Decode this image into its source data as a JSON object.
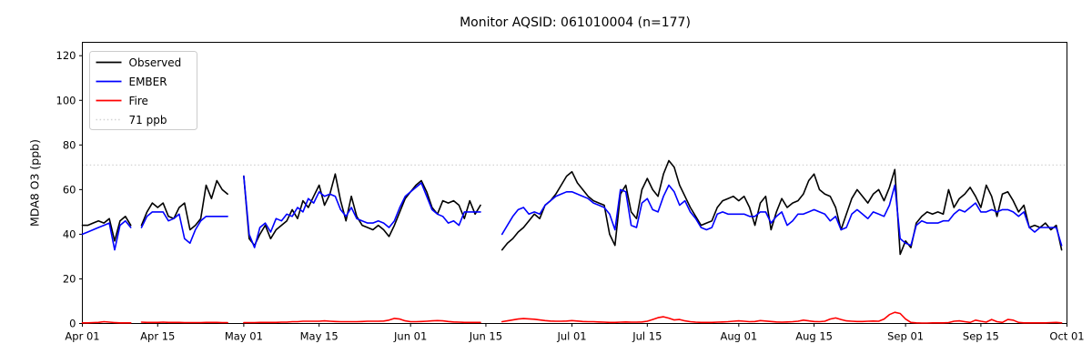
{
  "figure": {
    "title": "Monitor AQSID: 061010004 (n=177)",
    "y_axis_label": "MDA8 O3 (ppb)"
  },
  "chart_data": {
    "type": "line",
    "title": "Monitor AQSID: 061010004 (n=177)",
    "xlabel": "",
    "ylabel": "MDA8 O3 (ppb)",
    "x_unit": "days since Apr 01 (daily MDA8 values, Apr 01 - Sep 30; nulls = missing days)",
    "xlim": [
      0,
      183
    ],
    "ylim": [
      0,
      126
    ],
    "grid": false,
    "background": "#ffffff",
    "y_ticks": [
      0,
      20,
      40,
      60,
      80,
      100,
      120
    ],
    "x_ticks": [
      {
        "day": 0,
        "label": "Apr 01"
      },
      {
        "day": 14,
        "label": "Apr 15"
      },
      {
        "day": 30,
        "label": "May 01"
      },
      {
        "day": 44,
        "label": "May 15"
      },
      {
        "day": 61,
        "label": "Jun 01"
      },
      {
        "day": 75,
        "label": "Jun 15"
      },
      {
        "day": 91,
        "label": "Jul 01"
      },
      {
        "day": 105,
        "label": "Jul 15"
      },
      {
        "day": 122,
        "label": "Aug 01"
      },
      {
        "day": 136,
        "label": "Aug 15"
      },
      {
        "day": 153,
        "label": "Sep 01"
      },
      {
        "day": 167,
        "label": "Sep 15"
      },
      {
        "day": 183,
        "label": "Oct 01"
      }
    ],
    "reference_line": {
      "label": "71 ppb",
      "value": 71,
      "color": "#d3d3d3",
      "style": "dotted"
    },
    "legend": {
      "position": "upper left",
      "items": [
        {
          "label": "Observed",
          "color": "#000000",
          "style": "solid"
        },
        {
          "label": "EMBER",
          "color": "#0000ff",
          "style": "solid"
        },
        {
          "label": "Fire",
          "color": "#ff0000",
          "style": "solid"
        },
        {
          "label": "71 ppb",
          "color": "#d3d3d3",
          "style": "dotted"
        }
      ]
    },
    "series": [
      {
        "name": "Observed",
        "color": "#000000",
        "style": "solid",
        "values": [
          44,
          44,
          45,
          46,
          45,
          47,
          37,
          46,
          48,
          44,
          null,
          44,
          50,
          54,
          52,
          54,
          48,
          47,
          52,
          54,
          42,
          44,
          47,
          62,
          56,
          64,
          60,
          58,
          null,
          null,
          66,
          38,
          35,
          40,
          44,
          38,
          42,
          44,
          46,
          51,
          47,
          55,
          52,
          57,
          62,
          53,
          58,
          67,
          55,
          46,
          57,
          48,
          44,
          43,
          42,
          44,
          42,
          39,
          44,
          50,
          56,
          59,
          62,
          64,
          59,
          52,
          49,
          55,
          54,
          55,
          53,
          47,
          55,
          49,
          53,
          null,
          null,
          null,
          33,
          36,
          38,
          41,
          43,
          46,
          49,
          47,
          53,
          55,
          58,
          62,
          66,
          68,
          63,
          60,
          57,
          55,
          54,
          53,
          40,
          35,
          58,
          62,
          50,
          47,
          60,
          65,
          60,
          57,
          67,
          73,
          70,
          62,
          57,
          52,
          48,
          44,
          45,
          46,
          52,
          55,
          56,
          57,
          55,
          57,
          52,
          44,
          54,
          57,
          42,
          50,
          56,
          52,
          54,
          55,
          58,
          64,
          67,
          60,
          58,
          57,
          52,
          42,
          49,
          56,
          60,
          57,
          54,
          58,
          60,
          55,
          61,
          69,
          31,
          37,
          34,
          45,
          48,
          50,
          49,
          50,
          49,
          60,
          52,
          56,
          58,
          61,
          57,
          52,
          62,
          57,
          48,
          58,
          59,
          55,
          50,
          53,
          43,
          44,
          43,
          45,
          42,
          44,
          33
        ]
      },
      {
        "name": "EMBER",
        "color": "#0000ff",
        "style": "solid",
        "values": [
          40,
          41,
          42,
          43,
          44,
          45,
          33,
          44,
          46,
          43,
          null,
          43,
          48,
          50,
          50,
          50,
          46,
          47,
          49,
          38,
          36,
          42,
          46,
          48,
          48,
          48,
          48,
          48,
          null,
          null,
          66,
          40,
          34,
          43,
          45,
          41,
          47,
          46,
          49,
          48,
          52,
          50,
          56,
          54,
          59,
          57,
          58,
          57,
          51,
          48,
          52,
          47,
          46,
          45,
          45,
          46,
          45,
          43,
          46,
          52,
          57,
          59,
          61,
          63,
          57,
          51,
          49,
          48,
          45,
          46,
          44,
          50,
          50,
          50,
          50,
          null,
          null,
          null,
          40,
          44,
          48,
          51,
          52,
          49,
          50,
          49,
          53,
          55,
          57,
          58,
          59,
          59,
          58,
          57,
          56,
          54,
          53,
          52,
          49,
          42,
          60,
          59,
          44,
          43,
          54,
          56,
          51,
          50,
          57,
          62,
          59,
          53,
          55,
          50,
          47,
          43,
          42,
          43,
          49,
          50,
          49,
          49,
          49,
          49,
          48,
          48,
          50,
          50,
          45,
          48,
          50,
          44,
          46,
          49,
          49,
          50,
          51,
          50,
          49,
          46,
          48,
          42,
          43,
          49,
          51,
          49,
          47,
          50,
          49,
          48,
          53,
          62,
          38,
          36,
          35,
          44,
          46,
          45,
          45,
          45,
          46,
          46,
          49,
          51,
          50,
          52,
          54,
          50,
          50,
          51,
          50,
          51,
          51,
          50,
          48,
          50,
          43,
          41,
          43,
          43,
          43,
          43,
          35
        ]
      },
      {
        "name": "Fire",
        "color": "#ff0000",
        "style": "solid",
        "values": [
          0.3,
          0.3,
          0.4,
          0.5,
          0.8,
          0.6,
          0.4,
          0.3,
          0.3,
          0.3,
          null,
          0.6,
          0.5,
          0.5,
          0.5,
          0.6,
          0.5,
          0.5,
          0.5,
          0.4,
          0.4,
          0.4,
          0.4,
          0.5,
          0.5,
          0.5,
          0.4,
          0.4,
          null,
          null,
          0.4,
          0.4,
          0.4,
          0.5,
          0.5,
          0.5,
          0.5,
          0.6,
          0.6,
          0.8,
          0.8,
          1.0,
          1.0,
          1.0,
          1.0,
          1.2,
          1.0,
          0.9,
          0.8,
          0.8,
          0.8,
          0.8,
          0.9,
          1.0,
          1.0,
          1.0,
          1.1,
          1.5,
          2.3,
          2.0,
          1.2,
          0.8,
          0.8,
          0.9,
          1.0,
          1.2,
          1.3,
          1.2,
          0.9,
          0.7,
          0.6,
          0.5,
          0.5,
          0.5,
          0.5,
          null,
          null,
          null,
          0.8,
          1.2,
          1.6,
          2.0,
          2.2,
          2.1,
          1.9,
          1.6,
          1.3,
          1.1,
          1.0,
          1.0,
          1.1,
          1.3,
          1.1,
          0.9,
          0.8,
          0.8,
          0.7,
          0.6,
          0.5,
          0.5,
          0.6,
          0.7,
          0.6,
          0.6,
          0.7,
          1.0,
          1.8,
          2.6,
          3.0,
          2.4,
          1.6,
          1.8,
          1.2,
          0.8,
          0.6,
          0.5,
          0.5,
          0.5,
          0.6,
          0.7,
          0.8,
          1.0,
          1.2,
          1.0,
          0.8,
          0.9,
          1.3,
          1.1,
          0.9,
          0.7,
          0.6,
          0.7,
          0.8,
          1.0,
          1.5,
          1.2,
          0.9,
          0.8,
          1.0,
          2.0,
          2.5,
          1.8,
          1.2,
          1.0,
          0.9,
          0.9,
          1.0,
          1.1,
          1.0,
          2.0,
          4.0,
          5.0,
          4.5,
          2.0,
          0.5,
          0.3,
          0.2,
          0.2,
          0.3,
          0.3,
          0.3,
          0.4,
          1.0,
          1.2,
          0.8,
          0.5,
          1.5,
          1.0,
          0.6,
          1.8,
          0.8,
          0.5,
          1.8,
          1.5,
          0.5,
          0.3,
          0.3,
          0.3,
          0.3,
          0.3,
          0.4,
          0.5,
          0.3
        ]
      }
    ]
  }
}
